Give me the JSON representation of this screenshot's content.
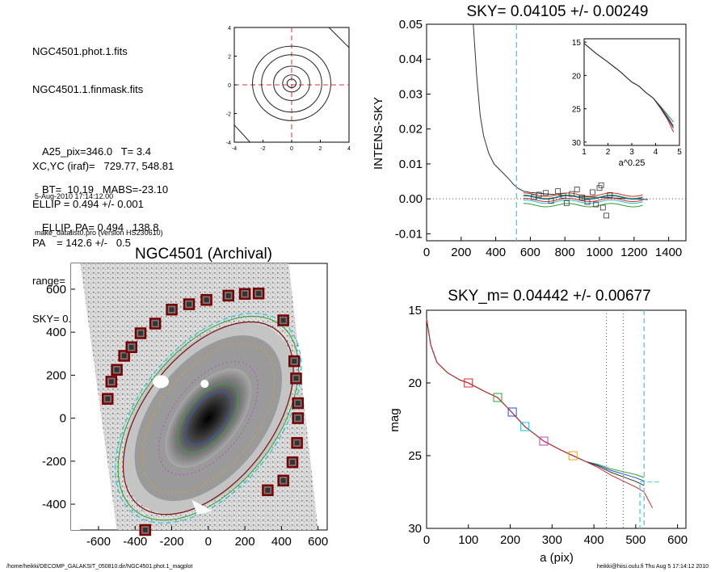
{
  "header_info": {
    "lines": [
      "NGC4501.phot.1.fits",
      "NGC4501.1.finmask.fits",
      "",
      "XC,YC (iraf)=   729.77, 548.81",
      "ELLIP = 0.494 +/- 0.001",
      "PA    = 142.6 +/-   0.5",
      "range=  430.-  470.",
      "SKY= 0.04105 +/- 0.00249"
    ],
    "lines2": [
      "A25_pix=346.0   T= 3.4",
      "BT=  10.19   MABS=-23.10",
      "ELLIP, PA= 0.494   138.8"
    ],
    "lines3": [
      "5-Aug-2010 17:14:12.00",
      "make_datalist0.pro (version HS230610)"
    ]
  },
  "footer": {
    "left": "/home/heikki/DECOMP_GALAKSIT_050810.dir/NGC4501.phot.1_magplot",
    "right": "heikki@hiisi.oulu.fi  Thu Aug  5 17:14:12 2010"
  },
  "chart_data": [
    {
      "type": "contour",
      "xlim": [
        -4,
        4
      ],
      "ylim": [
        -4,
        4
      ],
      "xticks": [
        -4,
        -2,
        0,
        2,
        4
      ],
      "yticks": [
        -4,
        -2,
        0,
        2,
        4
      ],
      "contour_radii": [
        0.3,
        0.6,
        1.2,
        2.0,
        2.6
      ]
    },
    {
      "type": "line",
      "title": "SKY= 0.04105 +/- 0.00249",
      "ylabel": "INTENS-SKY",
      "xlim": [
        0,
        1500
      ],
      "ylim": [
        -0.012,
        0.05
      ],
      "xticks": [
        "0",
        "200",
        "400",
        "600",
        "800",
        "1000",
        "1200",
        "1400"
      ],
      "yticks": [
        "-0.01",
        "0.00",
        "0.01",
        "0.02",
        "0.03",
        "0.04",
        "0.05"
      ],
      "profile": [
        [
          270,
          0.05
        ],
        [
          290,
          0.035
        ],
        [
          310,
          0.024
        ],
        [
          330,
          0.018
        ],
        [
          360,
          0.013
        ],
        [
          390,
          0.01
        ],
        [
          420,
          0.0085
        ],
        [
          450,
          0.007
        ],
        [
          480,
          0.0055
        ],
        [
          505,
          0.004
        ],
        [
          530,
          0.003
        ],
        [
          560,
          0.0022
        ],
        [
          600,
          0.0018
        ],
        [
          700,
          0.0014
        ],
        [
          900,
          0.0006
        ],
        [
          1100,
          0.0002
        ],
        [
          1280,
          -0.0002
        ]
      ],
      "sky_markers": [
        [
          620,
          0.0005
        ],
        [
          650,
          0.0012
        ],
        [
          690,
          0.0017
        ],
        [
          720,
          -0.0006
        ],
        [
          760,
          0.0022
        ],
        [
          790,
          0.0009
        ],
        [
          810,
          -0.0012
        ],
        [
          840,
          0.0014
        ],
        [
          870,
          0.0027
        ],
        [
          900,
          0.0004
        ],
        [
          930,
          -0.0009
        ],
        [
          960,
          0.0019
        ],
        [
          1000,
          0.0031
        ],
        [
          1020,
          -0.0025
        ],
        [
          1040,
          -0.0048
        ],
        [
          1060,
          0.0011
        ],
        [
          1010,
          0.0039
        ],
        [
          980,
          -0.0016
        ]
      ],
      "vline_cyan": 520,
      "inset": {
        "xlim": [
          1,
          5
        ],
        "ylim": [
          30.5,
          14.5
        ],
        "xlabel": "a^0.25",
        "xticks": [
          "1",
          "2",
          "3",
          "4",
          "5"
        ],
        "yticks": [
          "15",
          "20",
          "25",
          "30"
        ]
      }
    },
    {
      "type": "image",
      "title": "NGC4501 (Archival)",
      "xlim": [
        -750,
        650
      ],
      "ylim": [
        -520,
        720
      ],
      "xticks": [
        "-600",
        "-400",
        "-200",
        "0",
        "200",
        "400",
        "600"
      ],
      "yticks": [
        "-400",
        "-200",
        "0",
        "200",
        "400",
        "600"
      ],
      "mask_squares": [
        [
          -550,
          90
        ],
        [
          -530,
          170
        ],
        [
          -500,
          225
        ],
        [
          -460,
          290
        ],
        [
          -420,
          330
        ],
        [
          -370,
          395
        ],
        [
          -290,
          440
        ],
        [
          -200,
          505
        ],
        [
          -105,
          530
        ],
        [
          -10,
          550
        ],
        [
          110,
          570
        ],
        [
          200,
          578
        ],
        [
          275,
          580
        ],
        [
          410,
          455
        ],
        [
          470,
          265
        ],
        [
          480,
          185
        ],
        [
          490,
          70
        ],
        [
          490,
          0
        ],
        [
          485,
          -115
        ],
        [
          460,
          -205
        ],
        [
          410,
          -290
        ],
        [
          325,
          -335
        ],
        [
          -345,
          -520
        ]
      ]
    },
    {
      "type": "line",
      "title": "SKY_m=  0.04442 +/- 0.00677",
      "xlabel": "a (pix)",
      "ylabel": "mag",
      "xlim": [
        0,
        620
      ],
      "ylim": [
        30,
        15
      ],
      "xticks": [
        "0",
        "100",
        "200",
        "300",
        "400",
        "500",
        "600"
      ],
      "yticks": [
        "15",
        "20",
        "25",
        "30"
      ],
      "vlines_dotted": [
        430,
        470
      ],
      "vline_cyan": [
        510,
        520
      ],
      "markers": [
        [
          100,
          20.0,
          "#d62a2a"
        ],
        [
          170,
          21.0,
          "#2ca02c"
        ],
        [
          205,
          22.0,
          "#1f4fd6"
        ],
        [
          235,
          23.0,
          "#20c0d0"
        ],
        [
          280,
          24.0,
          "#c040c0"
        ],
        [
          350,
          25.0,
          "#e0a020"
        ]
      ]
    }
  ]
}
